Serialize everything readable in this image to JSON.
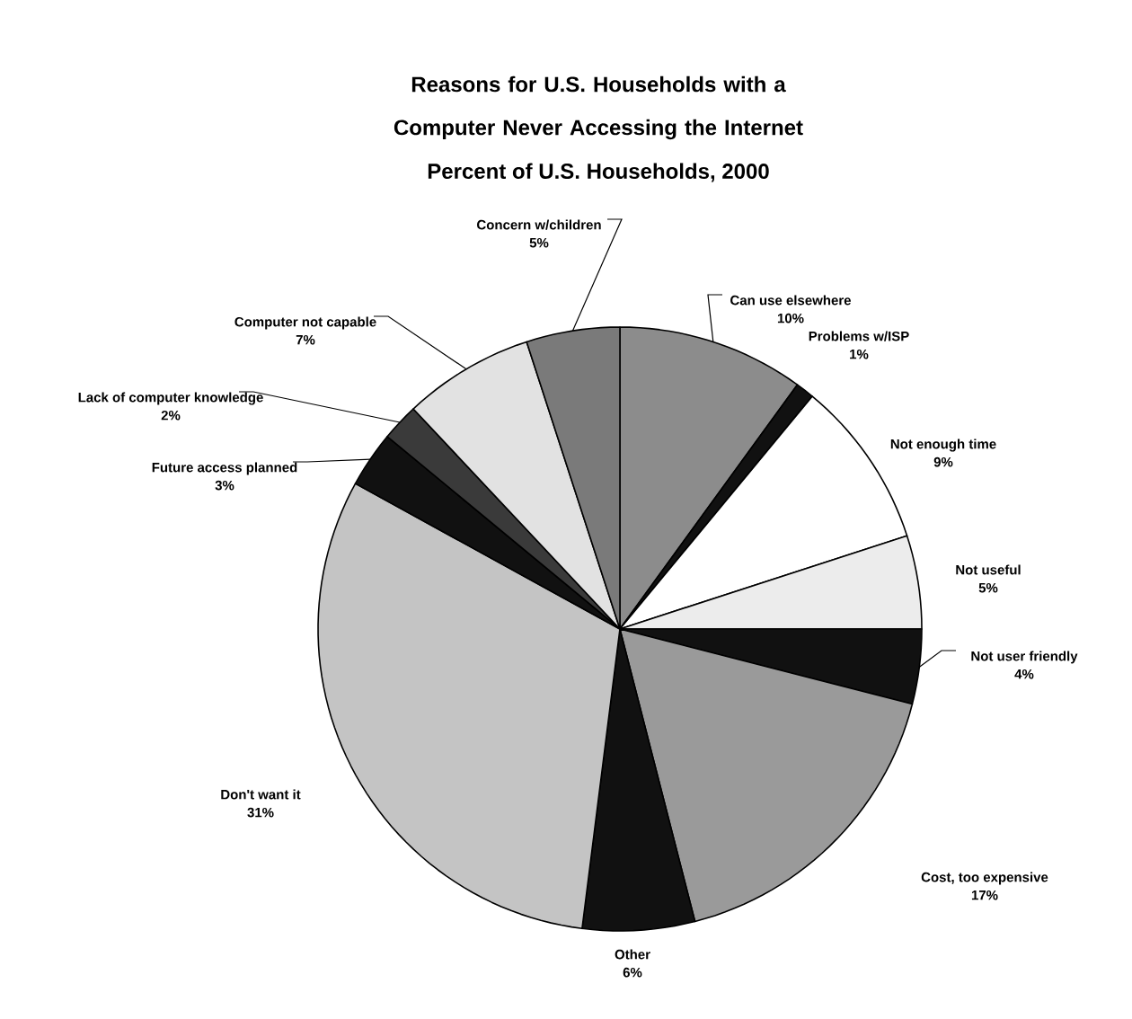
{
  "chart_data": {
    "type": "pie",
    "title": "Reasons for U.S. Households with a Computer Never Accessing the Internet",
    "subtitle": "Percent of U.S. Households, 2000",
    "categories": [
      "Can use elsewhere",
      "Problems w/ISP",
      "Not enough time",
      "Not useful",
      "Not user friendly",
      "Cost, too expensive",
      "Other",
      "Don't want it",
      "Future access planned",
      "Lack of computer knowledge",
      "Computer not capable",
      "Concern w/children"
    ],
    "values": [
      10,
      1,
      9,
      5,
      4,
      17,
      6,
      31,
      3,
      2,
      7,
      5
    ],
    "value_labels": [
      "10%",
      "1%",
      "9%",
      "5%",
      "4%",
      "17%",
      "6%",
      "31%",
      "3%",
      "2%",
      "7%",
      "5%"
    ],
    "colors": [
      "#8c8c8c",
      "#111111",
      "#ffffff",
      "#ececec",
      "#111111",
      "#9a9a9a",
      "#111111",
      "#c4c4c4",
      "#111111",
      "#3a3a3a",
      "#e2e2e2",
      "#7a7a7a"
    ]
  }
}
